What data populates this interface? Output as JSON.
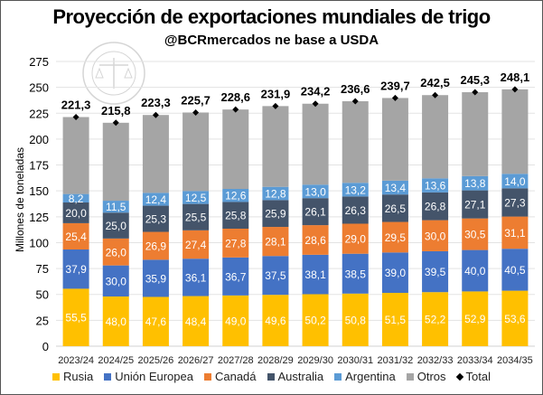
{
  "chart_data": {
    "type": "bar",
    "stacked": true,
    "title": "Proyección de exportaciones mundiales de trigo",
    "subtitle": "@BCRmercados ne base a USDA",
    "xlabel": "",
    "ylabel": "Millones de toneladas",
    "ylim": [
      0,
      275
    ],
    "yticks": [
      0,
      25,
      50,
      75,
      100,
      125,
      150,
      175,
      200,
      225,
      250,
      275
    ],
    "grid": true,
    "legend_position": "bottom",
    "categories": [
      "2023/24",
      "2024/25",
      "2025/26",
      "2026/27",
      "2027/28",
      "2028/29",
      "2029/30",
      "2030/31",
      "2031/32",
      "2032/33",
      "2033/34",
      "2034/35"
    ],
    "series": [
      {
        "name": "Rusia",
        "color": "#FFC000",
        "labeled": true,
        "values": [
          55.5,
          48.0,
          47.6,
          48.4,
          49.0,
          49.6,
          50.2,
          50.8,
          51.5,
          52.2,
          52.9,
          53.6
        ]
      },
      {
        "name": "Unión Europea",
        "color": "#4472C4",
        "labeled": true,
        "values": [
          37.9,
          30.0,
          35.9,
          36.1,
          36.7,
          37.5,
          38.1,
          38.5,
          39.0,
          39.5,
          40.0,
          40.5
        ]
      },
      {
        "name": "Canadá",
        "color": "#ED7D31",
        "labeled": true,
        "values": [
          25.4,
          26.0,
          26.9,
          27.4,
          27.8,
          28.1,
          28.6,
          29.0,
          29.5,
          30.0,
          30.5,
          31.1
        ]
      },
      {
        "name": "Australia",
        "color": "#44546A",
        "labeled": true,
        "values": [
          20.0,
          25.0,
          25.3,
          25.5,
          25.8,
          25.9,
          26.1,
          26.3,
          26.5,
          26.8,
          27.1,
          27.3
        ]
      },
      {
        "name": "Argentina",
        "color": "#5B9BD5",
        "labeled": true,
        "values": [
          8.2,
          11.5,
          12.4,
          12.5,
          12.6,
          12.8,
          13.0,
          13.2,
          13.4,
          13.6,
          13.8,
          14.0
        ]
      },
      {
        "name": "Otros",
        "color": "#A5A5A5",
        "labeled": false,
        "values": [
          74.3,
          75.3,
          75.2,
          75.8,
          76.7,
          78.0,
          78.2,
          78.8,
          79.8,
          80.4,
          81.0,
          81.6
        ]
      }
    ],
    "total": {
      "name": "Total",
      "color": "#000000",
      "marker": "diamond",
      "values": [
        221.3,
        215.8,
        223.3,
        225.7,
        228.6,
        231.9,
        234.2,
        236.6,
        239.7,
        242.5,
        245.3,
        248.1
      ]
    }
  },
  "logo": {
    "text": "BOLSA DE COMERCIO DE ROSARIO"
  }
}
